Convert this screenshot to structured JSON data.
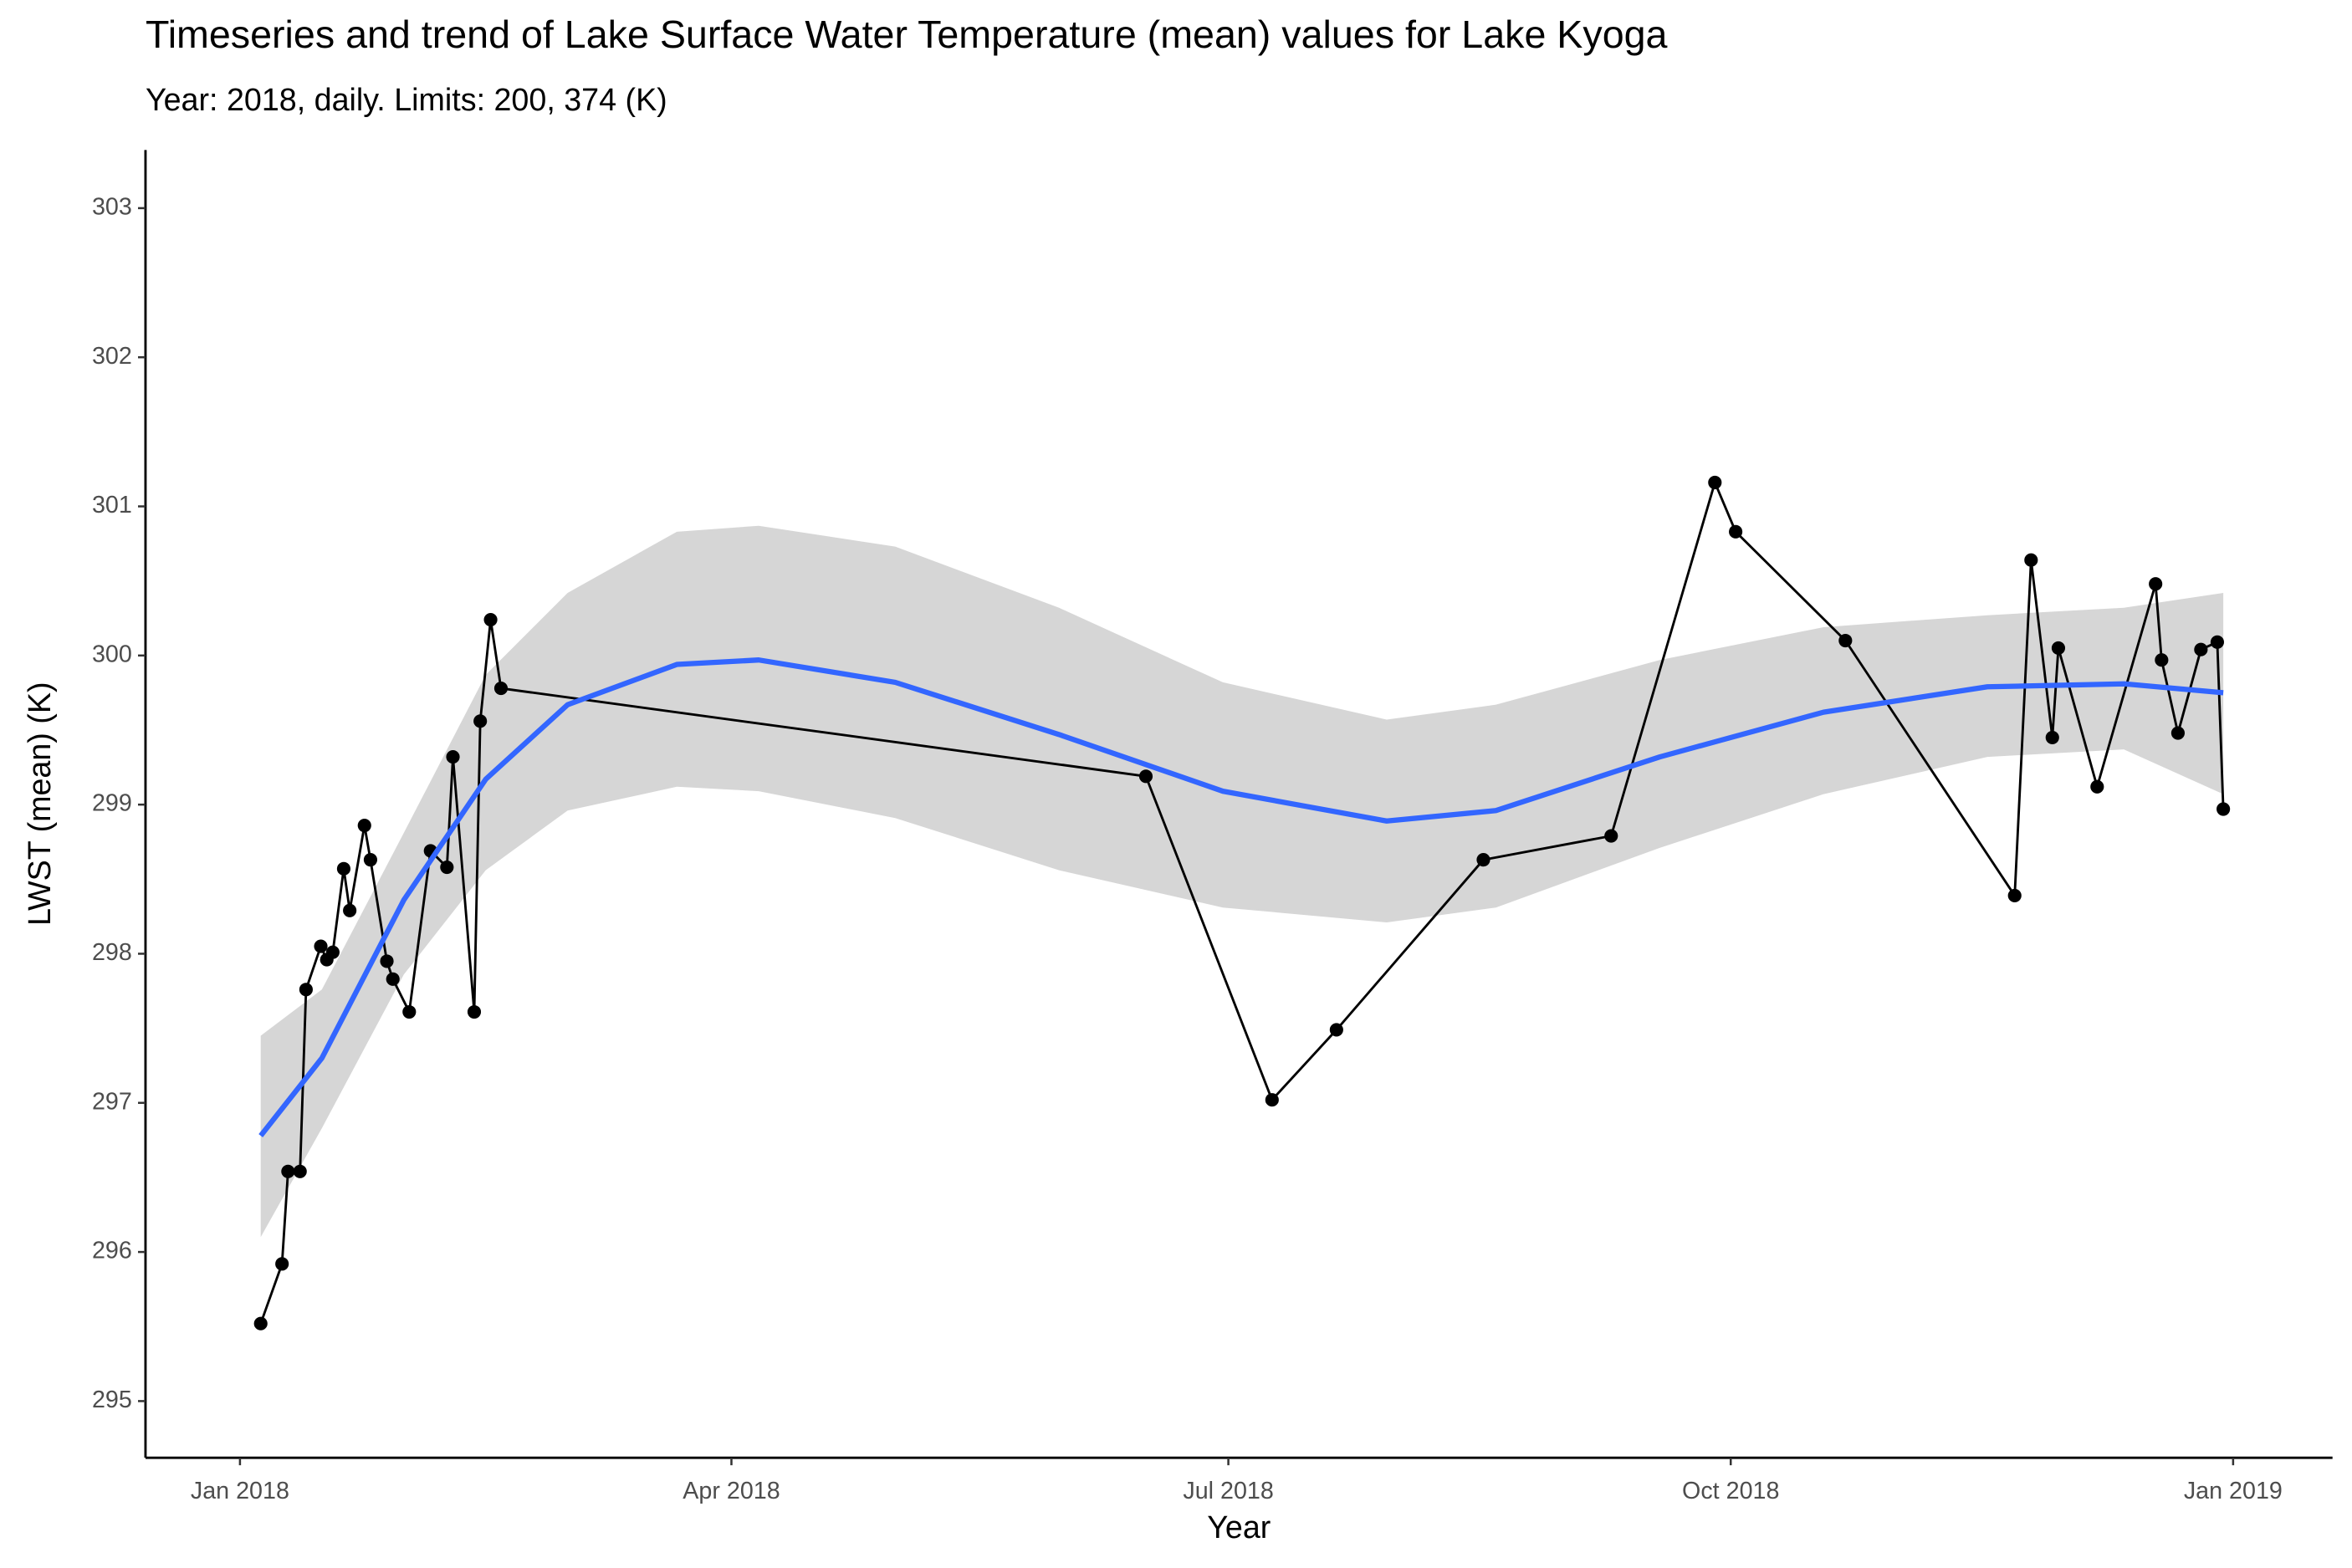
{
  "chart_data": {
    "type": "line",
    "title": "Timeseries and trend of Lake Surface Water Temperature (mean) values for Lake Kyoga",
    "subtitle": "Year: 2018, daily. Limits: 200, 374 (K)",
    "x_label": "Year",
    "y_label": "LWST (mean) (K)",
    "color": "#000000",
    "x": [
      3.8,
      7.7,
      8.8,
      11.0,
      12.1,
      14.8,
      15.9,
      17.0,
      19.0,
      20.1,
      22.8,
      23.9,
      26.9,
      28.0,
      31.0,
      34.9,
      37.9,
      39.0,
      42.9,
      44.0,
      45.9,
      47.8,
      165.9,
      189.0,
      200.8,
      227.7,
      251.1,
      270.1,
      273.9,
      294.0,
      325.0,
      328.0,
      331.9,
      333.0,
      340.1,
      350.8,
      351.9,
      354.9,
      359.1,
      362.1,
      363.2
    ],
    "values": [
      295.52,
      295.92,
      296.54,
      296.54,
      297.76,
      298.05,
      297.96,
      298.01,
      298.57,
      298.29,
      298.86,
      298.63,
      297.95,
      297.83,
      297.61,
      298.69,
      298.58,
      299.32,
      297.61,
      299.56,
      300.24,
      299.78,
      299.19,
      297.02,
      297.49,
      298.63,
      298.79,
      301.16,
      300.83,
      300.1,
      298.39,
      300.64,
      299.45,
      300.05,
      299.12,
      300.48,
      299.97,
      299.48,
      300.04,
      300.09,
      298.97
    ],
    "trend": {
      "color": "#3366ff",
      "band_color": "#d6d6d6",
      "x": [
        3.8,
        15,
        30,
        45,
        60,
        80,
        95,
        120,
        150,
        180,
        210,
        230,
        260,
        290,
        320,
        345,
        363.2
      ],
      "values": [
        296.78,
        297.3,
        298.36,
        299.17,
        299.67,
        299.94,
        299.97,
        299.82,
        299.47,
        299.09,
        298.89,
        298.96,
        299.32,
        299.62,
        299.79,
        299.81,
        299.75
      ],
      "lower": [
        296.1,
        296.83,
        297.86,
        298.56,
        298.96,
        299.12,
        299.09,
        298.91,
        298.56,
        298.31,
        298.21,
        298.31,
        298.71,
        299.07,
        299.32,
        299.37,
        299.07
      ],
      "upper": [
        297.45,
        297.76,
        298.81,
        299.87,
        300.42,
        300.83,
        300.87,
        300.73,
        300.32,
        299.82,
        299.57,
        299.67,
        299.97,
        300.19,
        300.27,
        300.32,
        300.42
      ]
    },
    "xlim": [
      -17.3,
      383.2
    ],
    "ylim": [
      294.62,
      303.39
    ],
    "xticks": [
      {
        "value": 0,
        "label": "Jan 2018"
      },
      {
        "value": 90,
        "label": "Apr 2018"
      },
      {
        "value": 181,
        "label": "Jul 2018"
      },
      {
        "value": 273,
        "label": "Oct 2018"
      },
      {
        "value": 365,
        "label": "Jan 2019"
      }
    ],
    "yticks": [
      295,
      296,
      297,
      298,
      299,
      300,
      301,
      302,
      303
    ]
  }
}
